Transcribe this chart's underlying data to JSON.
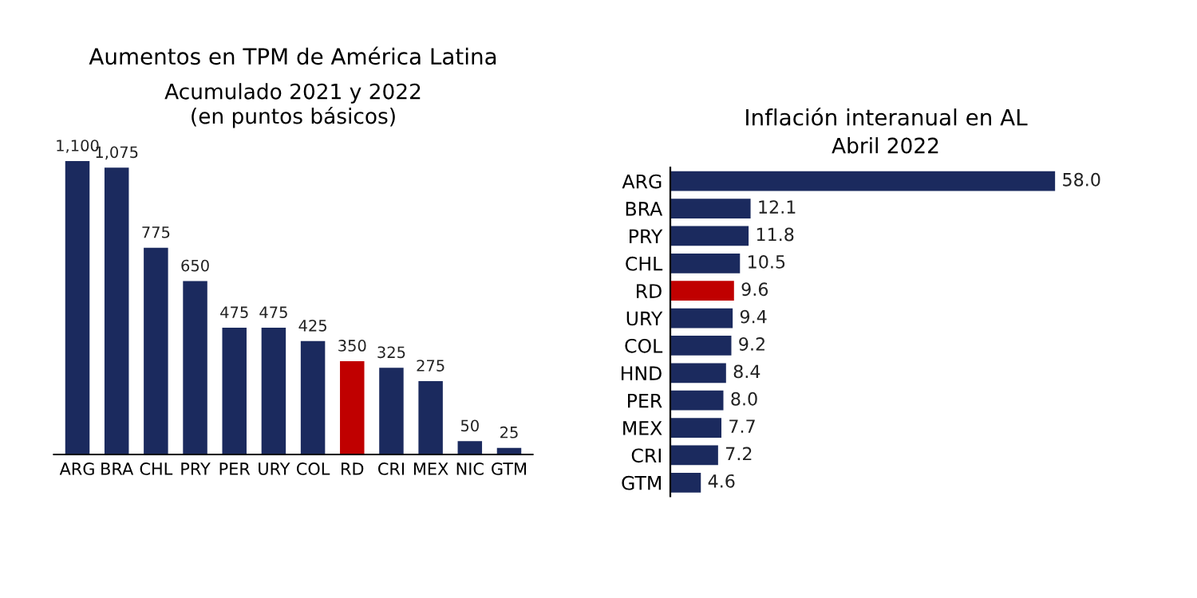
{
  "chart_data": [
    {
      "type": "bar",
      "title": "Aumentos en TPM de América Latina",
      "subtitle": "Acumulado 2021 y 2022\n(en puntos básicos)",
      "categories": [
        "ARG",
        "BRA",
        "CHL",
        "PRY",
        "PER",
        "URY",
        "COL",
        "RD",
        "CRI",
        "MEX",
        "NIC",
        "GTM"
      ],
      "values": [
        1100,
        1075,
        775,
        650,
        475,
        475,
        425,
        350,
        325,
        275,
        50,
        25
      ],
      "value_labels": [
        "1,100",
        "1,075",
        "775",
        "650",
        "475",
        "475",
        "425",
        "350",
        "325",
        "275",
        "50",
        "25"
      ],
      "colors": [
        "#1b2a5e",
        "#1b2a5e",
        "#1b2a5e",
        "#1b2a5e",
        "#1b2a5e",
        "#1b2a5e",
        "#1b2a5e",
        "#c00000",
        "#1b2a5e",
        "#1b2a5e",
        "#1b2a5e",
        "#1b2a5e"
      ],
      "grid": false,
      "legend": false
    },
    {
      "type": "bar",
      "orientation": "horizontal",
      "title": "Inflación interanual en AL",
      "subtitle": "Abril 2022",
      "categories": [
        "ARG",
        "BRA",
        "PRY",
        "CHL",
        "RD",
        "URY",
        "COL",
        "HND",
        "PER",
        "MEX",
        "CRI",
        "GTM"
      ],
      "values": [
        58.0,
        12.1,
        11.8,
        10.5,
        9.6,
        9.4,
        9.2,
        8.4,
        8.0,
        7.7,
        7.2,
        4.6
      ],
      "value_labels": [
        "58.0",
        "12.1",
        "11.8",
        "10.5",
        "9.6",
        "9.4",
        "9.2",
        "8.4",
        "8.0",
        "7.7",
        "7.2",
        "4.6"
      ],
      "colors": [
        "#1b2a5e",
        "#1b2a5e",
        "#1b2a5e",
        "#1b2a5e",
        "#c00000",
        "#1b2a5e",
        "#1b2a5e",
        "#1b2a5e",
        "#1b2a5e",
        "#1b2a5e",
        "#1b2a5e",
        "#1b2a5e"
      ],
      "grid": false,
      "legend": false
    }
  ]
}
